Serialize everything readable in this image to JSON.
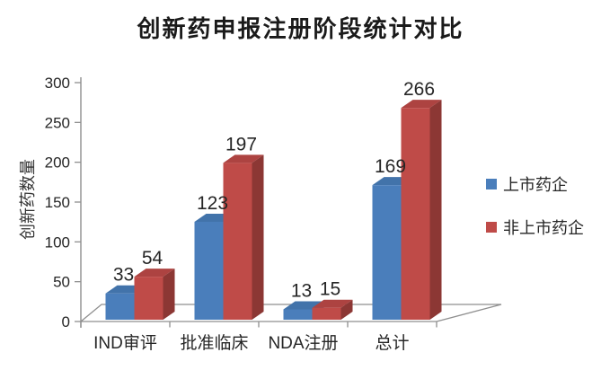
{
  "page": {
    "background": "#ffffff"
  },
  "chart_data": {
    "type": "bar",
    "style": "3d-clustered-column",
    "title": "创新药申报注册阶段统计对比",
    "xlabel": "",
    "ylabel": "创新药数量",
    "categories": [
      "IND审评",
      "批准临床",
      "NDA注册",
      "总计"
    ],
    "series": [
      {
        "name": "上市药企",
        "values": [
          33,
          123,
          13,
          169
        ],
        "color": "#4a7ebb",
        "color_top": "#4273aa",
        "color_side": "#2f5a8c"
      },
      {
        "name": "非上市药企",
        "values": [
          54,
          197,
          15,
          266
        ],
        "color": "#bf4b48",
        "color_top": "#ad4341",
        "color_side": "#8c3734"
      }
    ],
    "ylim": [
      0,
      300
    ],
    "ytick_step": 50,
    "ytick_labels": [
      "0",
      "50",
      "100",
      "150",
      "200",
      "250",
      "300"
    ],
    "value_labels_shown": true,
    "grid": false,
    "legend_position": "right",
    "axis_color": "#8f8f8f",
    "text_color": "#262626"
  }
}
